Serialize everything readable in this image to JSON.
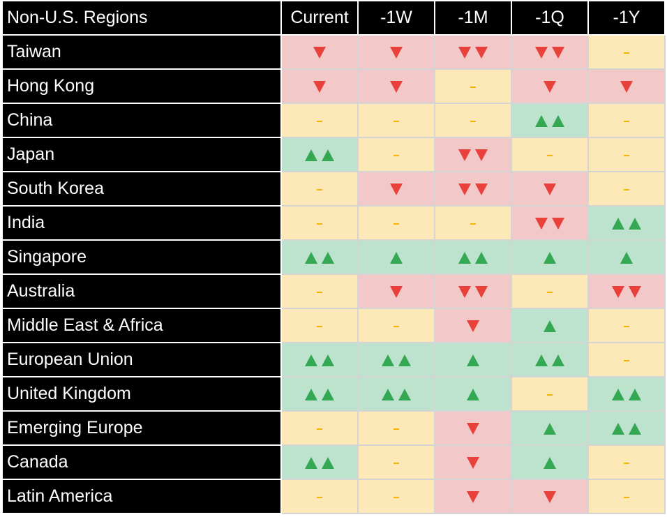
{
  "columns": {
    "region": "Non-U.S. Regions",
    "periods": [
      "Current",
      "-1W",
      "-1M",
      "-1Q",
      "-1Y"
    ]
  },
  "colors": {
    "down_bg": "#f3c8c8",
    "flat_bg": "#fde9b8",
    "up_bg": "#bde3cf",
    "down_arrow": "#e8413c",
    "up_arrow": "#34a853",
    "flat_dash": "#f5b400"
  },
  "rows": [
    {
      "region": "Taiwan",
      "signals": [
        -1,
        -1,
        -2,
        -2,
        0
      ]
    },
    {
      "region": "Hong Kong",
      "signals": [
        -1,
        -1,
        0,
        -1,
        -1
      ]
    },
    {
      "region": "China",
      "signals": [
        0,
        0,
        0,
        2,
        0
      ]
    },
    {
      "region": "Japan",
      "signals": [
        2,
        0,
        -2,
        0,
        0
      ]
    },
    {
      "region": "South Korea",
      "signals": [
        0,
        -1,
        -2,
        -1,
        0
      ]
    },
    {
      "region": "India",
      "signals": [
        0,
        0,
        0,
        -2,
        2
      ]
    },
    {
      "region": "Singapore",
      "signals": [
        2,
        1,
        2,
        1,
        1
      ]
    },
    {
      "region": "Australia",
      "signals": [
        0,
        -1,
        -2,
        0,
        -2
      ]
    },
    {
      "region": "Middle East & Africa",
      "signals": [
        0,
        0,
        -1,
        1,
        0
      ]
    },
    {
      "region": "European Union",
      "signals": [
        2,
        2,
        1,
        2,
        0
      ]
    },
    {
      "region": "United Kingdom",
      "signals": [
        2,
        2,
        1,
        0,
        2
      ]
    },
    {
      "region": "Emerging Europe",
      "signals": [
        0,
        0,
        -1,
        1,
        2
      ]
    },
    {
      "region": "Canada",
      "signals": [
        2,
        0,
        -1,
        1,
        0
      ]
    },
    {
      "region": "Latin America",
      "signals": [
        0,
        0,
        -1,
        -1,
        0
      ]
    }
  ]
}
